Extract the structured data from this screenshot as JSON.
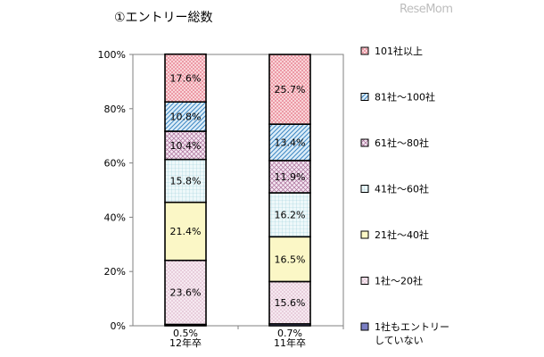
{
  "title": "①エントリー総数",
  "watermark": "ReseMom",
  "chart_data": {
    "type": "bar",
    "stacked": true,
    "categories": [
      "12年卒",
      "11年卒"
    ],
    "y_ticks": [
      "0%",
      "20%",
      "40%",
      "60%",
      "80%",
      "100%"
    ],
    "ylim": [
      0,
      100
    ],
    "legend_position": "right",
    "series": [
      {
        "name": "1社もエントリーしていない",
        "values": [
          0.5,
          0.7
        ],
        "labels": [
          "0.5%",
          "0.7%"
        ],
        "fill": "#7b7fc4",
        "pattern": "solid"
      },
      {
        "name": "1社～20社",
        "values": [
          23.6,
          15.6
        ],
        "labels": [
          "23.6%",
          "15.6%"
        ],
        "fill": "#f6e9f1",
        "pattern": "dots"
      },
      {
        "name": "21社～40社",
        "values": [
          21.4,
          16.5
        ],
        "labels": [
          "21.4%",
          "16.5%"
        ],
        "fill": "#fbf7c6",
        "pattern": "solid"
      },
      {
        "name": "41社～60社",
        "values": [
          15.8,
          16.2
        ],
        "labels": [
          "15.8%",
          "16.2%"
        ],
        "fill": "#e8f6f8",
        "pattern": "grid"
      },
      {
        "name": "61社～80社",
        "values": [
          10.4,
          11.9
        ],
        "labels": [
          "10.4%",
          "11.9%"
        ],
        "fill": "#f2e4ef",
        "pattern": "cross"
      },
      {
        "name": "81社～100社",
        "values": [
          10.8,
          13.4
        ],
        "labels": [
          "10.8%",
          "13.4%"
        ],
        "fill": "#d9ebf7",
        "pattern": "diag"
      },
      {
        "name": "101社以上",
        "values": [
          17.6,
          25.7
        ],
        "labels": [
          "17.6%",
          "25.7%"
        ],
        "fill": "#f7c9cf",
        "pattern": "check"
      }
    ],
    "legend_lines": [
      [
        "101社以上"
      ],
      [
        "81社～100社"
      ],
      [
        "61社～80社"
      ],
      [
        "41社～60社"
      ],
      [
        "21社～40社"
      ],
      [
        "1社～20社"
      ],
      [
        "1社もエントリー",
        "していない"
      ]
    ]
  }
}
